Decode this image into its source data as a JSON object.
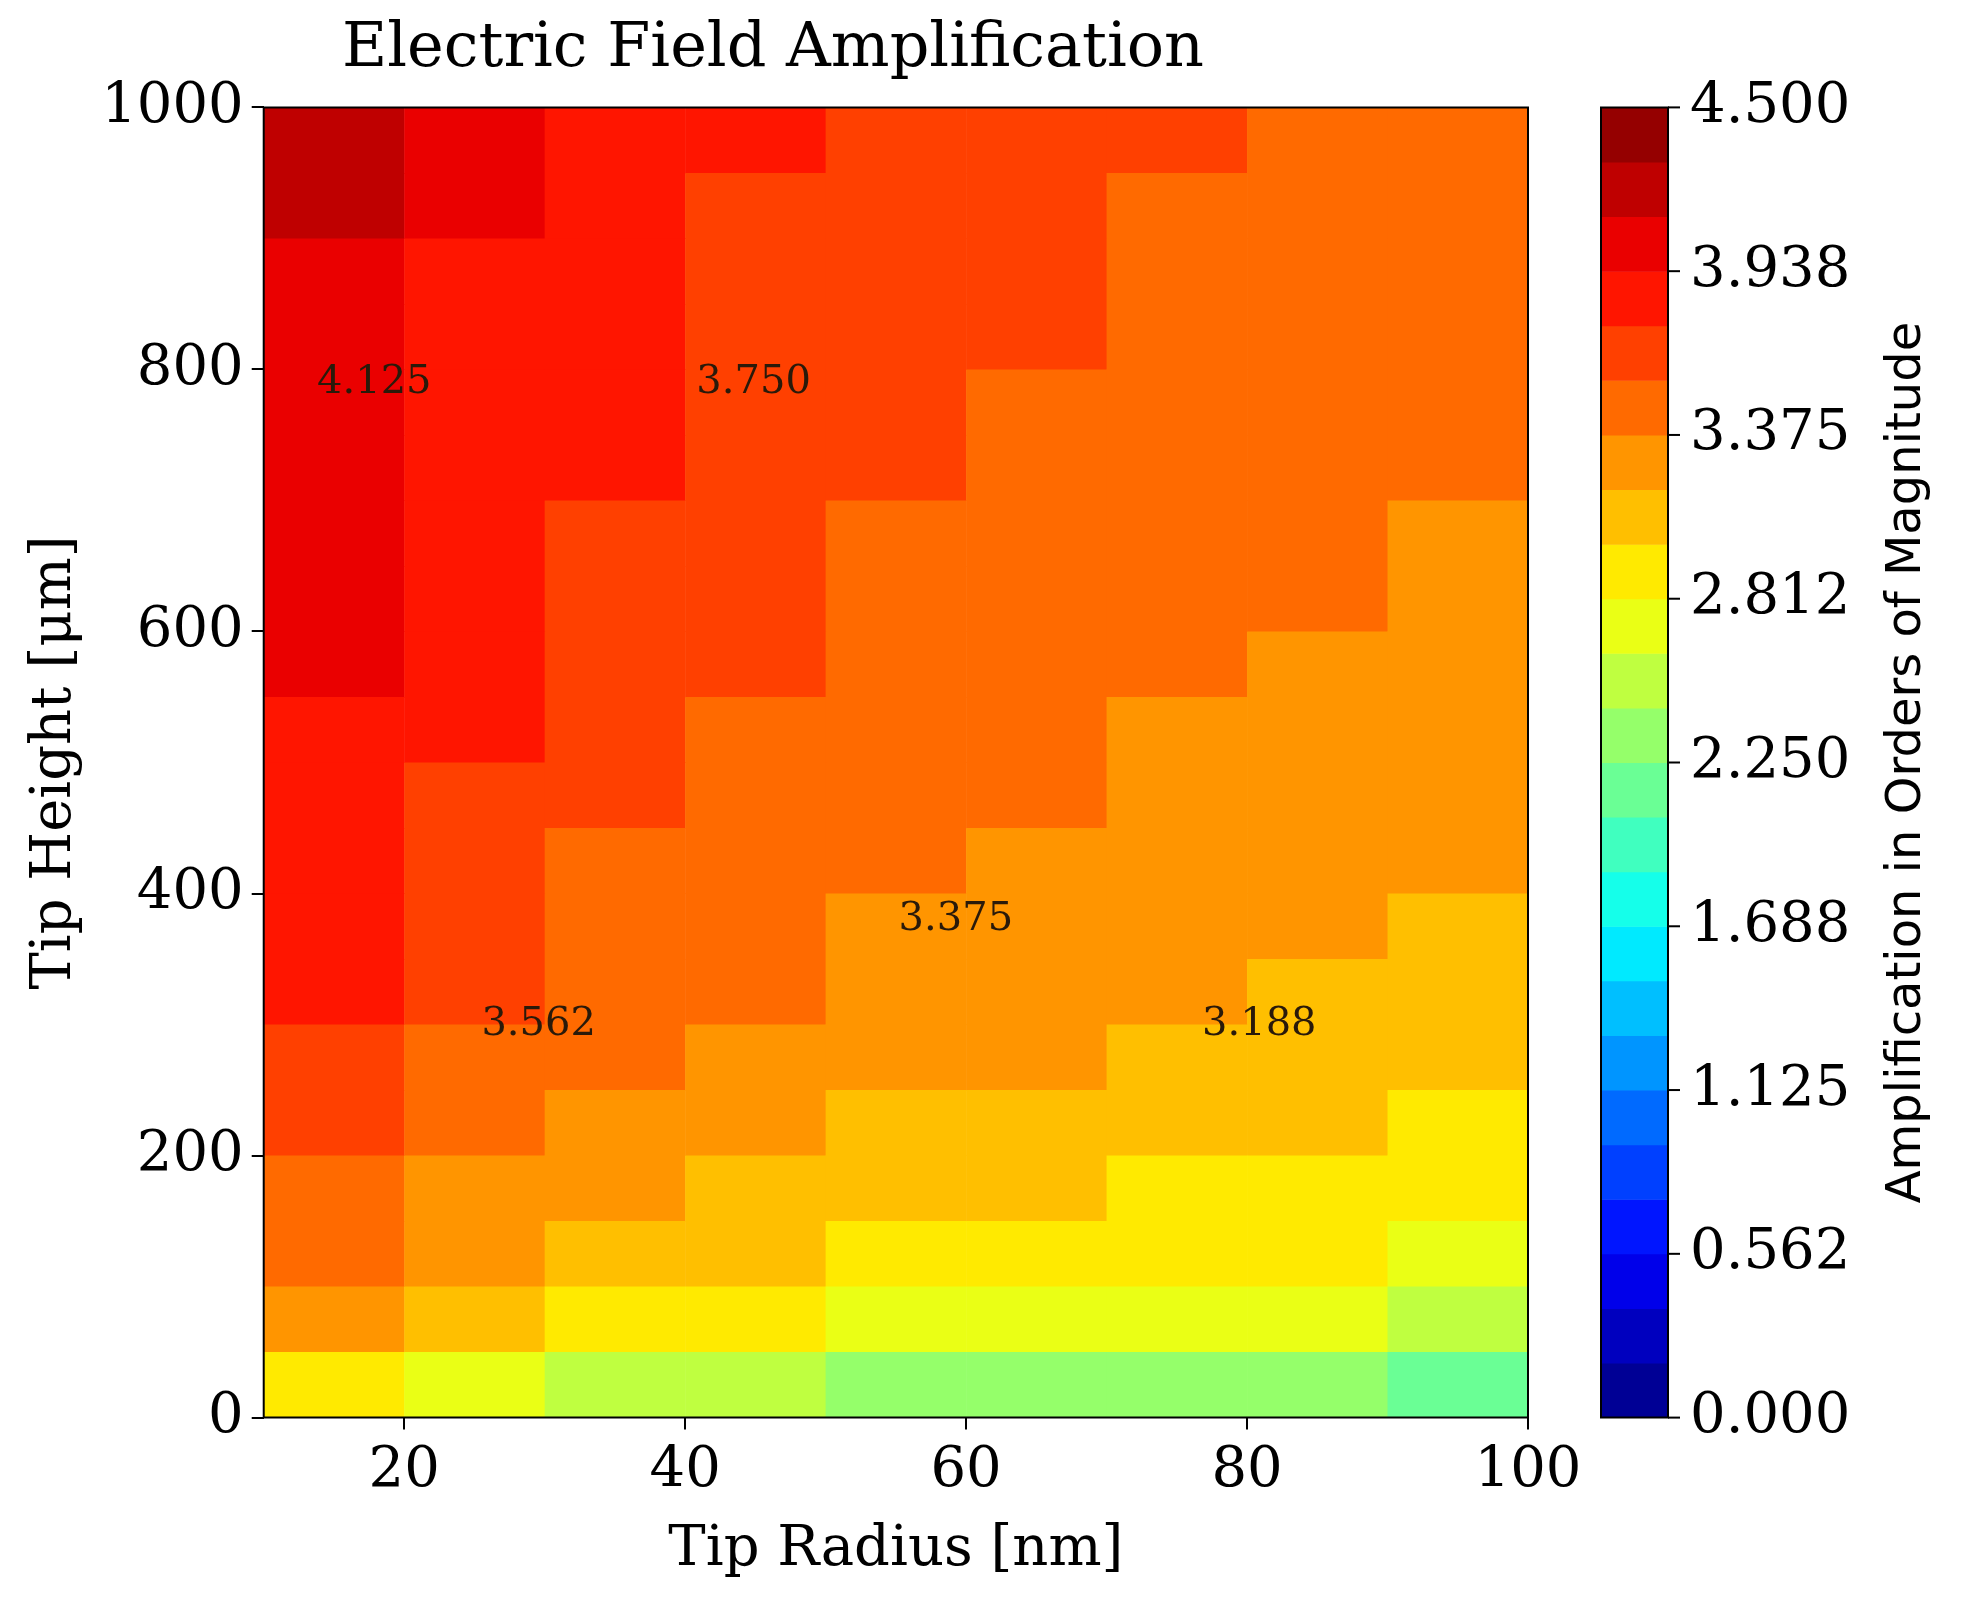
{
  "chart_data": {
    "type": "heatmap",
    "title": "Electric Field Amplification",
    "xlabel": "Tip Radius [nm]",
    "ylabel": "Tip Height [μm]",
    "clabel": "Amplification in Orders of Magnitude",
    "x": [
      15,
      25,
      35,
      45,
      55,
      65,
      75,
      85,
      95
    ],
    "y": [
      975,
      925,
      875,
      825,
      775,
      725,
      675,
      625,
      575,
      525,
      475,
      425,
      375,
      325,
      275,
      225,
      175,
      125,
      75,
      25
    ],
    "cells": [
      [
        4.15,
        3.97,
        3.85,
        3.76,
        3.69,
        3.63,
        3.58,
        3.54,
        3.5
      ],
      [
        4.13,
        3.95,
        3.83,
        3.74,
        3.67,
        3.61,
        3.56,
        3.52,
        3.48
      ],
      [
        4.11,
        3.93,
        3.81,
        3.72,
        3.65,
        3.6,
        3.54,
        3.5,
        3.46
      ],
      [
        4.09,
        3.91,
        3.79,
        3.7,
        3.63,
        3.57,
        3.52,
        3.48,
        3.44
      ],
      [
        4.07,
        3.89,
        3.77,
        3.68,
        3.61,
        3.55,
        3.5,
        3.46,
        3.42
      ],
      [
        4.04,
        3.87,
        3.75,
        3.66,
        3.59,
        3.53,
        3.48,
        3.43,
        3.4
      ],
      [
        4.02,
        3.84,
        3.72,
        3.63,
        3.56,
        3.5,
        3.45,
        3.41,
        3.37
      ],
      [
        3.99,
        3.81,
        3.69,
        3.61,
        3.54,
        3.48,
        3.43,
        3.38,
        3.34
      ],
      [
        3.96,
        3.78,
        3.66,
        3.58,
        3.51,
        3.45,
        3.4,
        3.35,
        3.31
      ],
      [
        3.93,
        3.75,
        3.63,
        3.54,
        3.47,
        3.42,
        3.36,
        3.32,
        3.28
      ],
      [
        3.9,
        3.72,
        3.6,
        3.51,
        3.44,
        3.38,
        3.33,
        3.29,
        3.25
      ],
      [
        3.86,
        3.68,
        3.56,
        3.47,
        3.4,
        3.34,
        3.29,
        3.25,
        3.21
      ],
      [
        3.81,
        3.63,
        3.51,
        3.43,
        3.36,
        3.3,
        3.25,
        3.2,
        3.16
      ],
      [
        3.76,
        3.58,
        3.46,
        3.38,
        3.31,
        3.25,
        3.2,
        3.15,
        3.11
      ],
      [
        3.7,
        3.52,
        3.41,
        3.32,
        3.25,
        3.19,
        3.14,
        3.09,
        3.05
      ],
      [
        3.63,
        3.45,
        3.33,
        3.25,
        3.18,
        3.12,
        3.07,
        3.02,
        2.98
      ],
      [
        3.54,
        3.37,
        3.25,
        3.16,
        3.09,
        3.03,
        2.98,
        2.93,
        2.9
      ],
      [
        3.43,
        3.25,
        3.13,
        3.04,
        2.97,
        2.91,
        2.86,
        2.82,
        2.78
      ],
      [
        3.25,
        3.07,
        2.95,
        2.86,
        2.79,
        2.73,
        2.68,
        2.64,
        2.6
      ],
      [
        2.86,
        2.68,
        2.56,
        2.47,
        2.4,
        2.34,
        2.29,
        2.25,
        2.21
      ]
    ],
    "clim": [
      0,
      4.5
    ],
    "cticks": [
      {
        "value": 0,
        "label": "0.000"
      },
      {
        "value": 0.5625,
        "label": "0.562"
      },
      {
        "value": 1.125,
        "label": "1.125"
      },
      {
        "value": 1.6875,
        "label": "1.688"
      },
      {
        "value": 2.25,
        "label": "2.250"
      },
      {
        "value": 2.8125,
        "label": "2.812"
      },
      {
        "value": 3.375,
        "label": "3.375"
      },
      {
        "value": 3.9375,
        "label": "3.938"
      },
      {
        "value": 4.5,
        "label": "4.500"
      }
    ],
    "xlim": [
      10,
      100
    ],
    "ylim": [
      0,
      1000
    ],
    "xticks": [
      20,
      40,
      60,
      80,
      100
    ],
    "yticks": [
      0,
      200,
      400,
      600,
      800,
      1000
    ],
    "annotations": [
      "4.125",
      "3.750",
      "3.562",
      "3.375",
      "3.188"
    ]
  }
}
